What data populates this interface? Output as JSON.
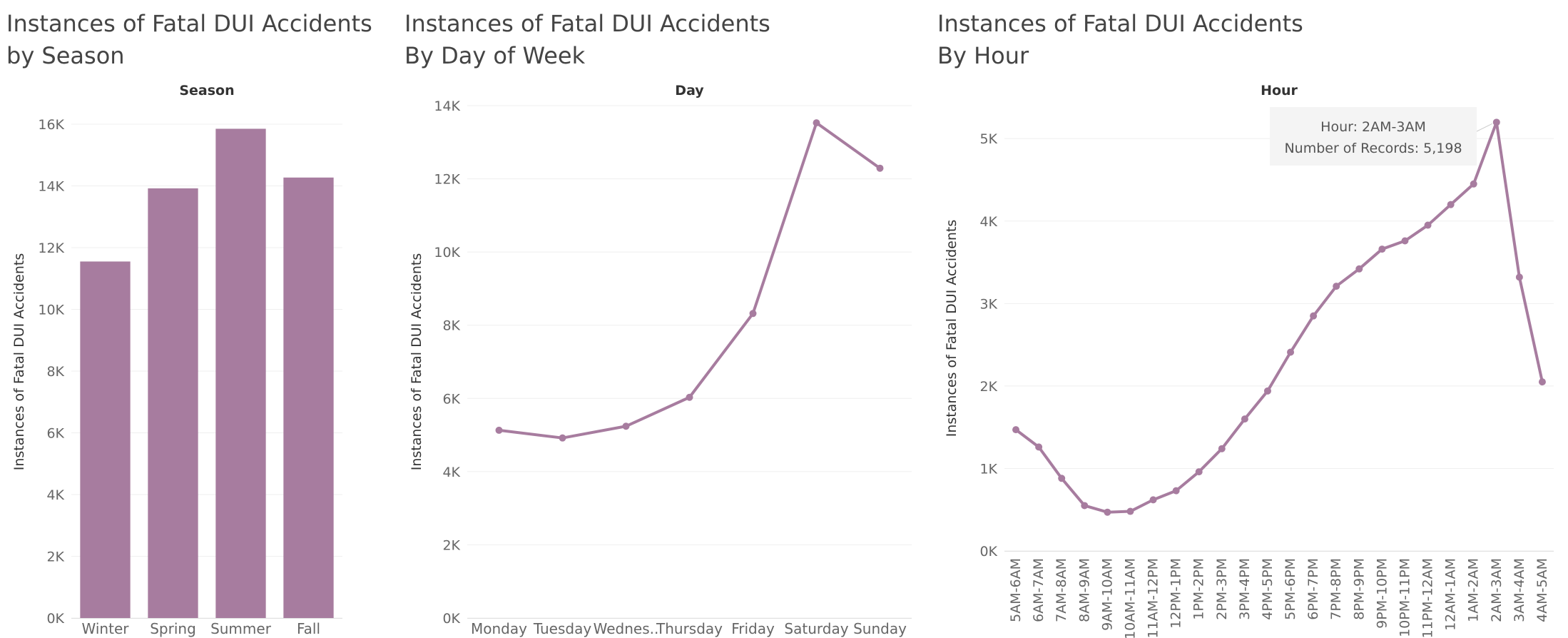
{
  "theme": {
    "mark_color": "#a77c9f",
    "title_color": "#444444",
    "text_color": "#666666",
    "header_color": "#333333",
    "grid_color": "#efefef",
    "axis_color": "#e0e0e0",
    "tooltip_bg": "#f4f4f4"
  },
  "chart_data": [
    {
      "type": "bar",
      "title": "Instances of Fatal DUI Accidents",
      "subtitle": "by Season",
      "header": "Season",
      "ylabel": "Instances of Fatal DUI Accidents",
      "categories": [
        "Winter",
        "Spring",
        "Summer",
        "Fall"
      ],
      "values": [
        11550,
        13920,
        15850,
        14270
      ],
      "ylim": [
        0,
        16600
      ],
      "yticks": [
        0,
        2000,
        4000,
        6000,
        8000,
        10000,
        12000,
        14000,
        16000
      ],
      "yticklabels": [
        "0K",
        "2K",
        "4K",
        "6K",
        "8K",
        "10K",
        "12K",
        "14K",
        "16K"
      ],
      "grid": true
    },
    {
      "type": "line",
      "title": "Instances of Fatal DUI Accidents",
      "subtitle": "By Day of Week",
      "header": "Day",
      "ylabel": "Instances of Fatal DUI Accidents",
      "categories": [
        "Monday",
        "Tuesday",
        "Wednes..",
        "Thursday",
        "Friday",
        "Saturday",
        "Sunday"
      ],
      "values": [
        5130,
        4920,
        5240,
        6030,
        8320,
        13530,
        12290
      ],
      "ylim": [
        0,
        14000
      ],
      "yticks": [
        0,
        2000,
        4000,
        6000,
        8000,
        10000,
        12000,
        14000
      ],
      "yticklabels": [
        "0K",
        "2K",
        "4K",
        "6K",
        "8K",
        "10K",
        "12K",
        "14K"
      ],
      "grid": true
    },
    {
      "type": "line",
      "title": "Instances of Fatal DUI Accidents",
      "subtitle": "By Hour",
      "header": "Hour",
      "ylabel": "Instances of Fatal DUI Accidents",
      "categories": [
        "5AM-6AM",
        "6AM-7AM",
        "7AM-8AM",
        "8AM-9AM",
        "9AM-10AM",
        "10AM-11AM",
        "11AM-12PM",
        "12PM-1PM",
        "1PM-2PM",
        "2PM-3PM",
        "3PM-4PM",
        "4PM-5PM",
        "5PM-6PM",
        "6PM-7PM",
        "7PM-8PM",
        "8PM-9PM",
        "9PM-10PM",
        "10PM-11PM",
        "11PM-12AM",
        "12AM-1AM",
        "1AM-2AM",
        "2AM-3AM",
        "3AM-4AM",
        "4AM-5AM"
      ],
      "values": [
        1470,
        1260,
        880,
        550,
        470,
        480,
        620,
        730,
        960,
        1240,
        1600,
        1940,
        2410,
        2850,
        3210,
        3420,
        3660,
        3760,
        3950,
        4200,
        4450,
        5198,
        3320,
        2050
      ],
      "ylim": [
        0,
        5400
      ],
      "yticks": [
        0,
        1000,
        2000,
        3000,
        4000,
        5000
      ],
      "yticklabels": [
        "0K",
        "1K",
        "2K",
        "3K",
        "4K",
        "5K"
      ],
      "grid": true,
      "tooltip": {
        "index": 21,
        "line1": "Hour: 2AM-3AM",
        "line2": "Number of Records: 5,198"
      }
    }
  ]
}
